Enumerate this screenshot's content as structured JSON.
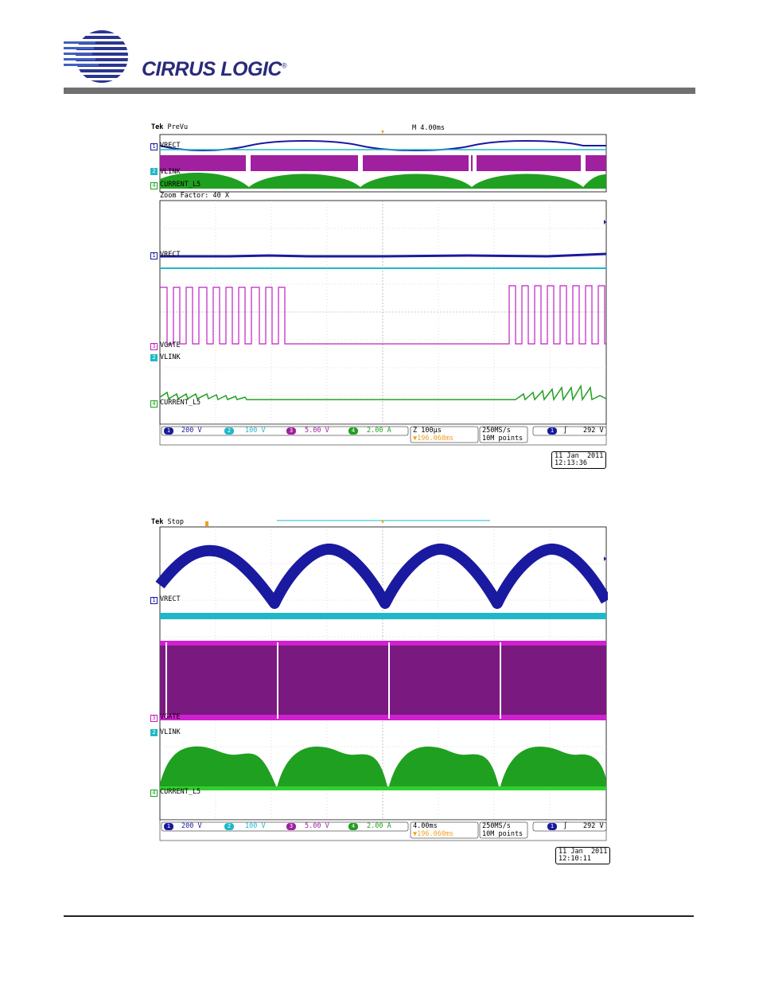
{
  "header": {
    "logo_text": "CIRRUS LOGIC",
    "logo_mark": "®"
  },
  "colors": {
    "ch1": "#1a1aa0",
    "ch2": "#20b8c8",
    "ch3": "#c020c0",
    "ch4": "#20a020",
    "trigger": "#f0a020"
  },
  "scope1": {
    "brand": "Tek",
    "state": "PreVu",
    "timebase_top": "M 4.00ms",
    "zoom_label": "Zoom Factor: 40 X",
    "channels": {
      "ch1": {
        "num": "1",
        "name": "VRECT",
        "scale": "200 V"
      },
      "ch2": {
        "num": "2",
        "name": "VLINK",
        "scale": "100 V"
      },
      "ch3": {
        "num": "3",
        "name": "VGATE",
        "scale": "5.00 V"
      },
      "ch4": {
        "num": "4",
        "name": "CURRENT_L5",
        "scale": "2.00 A"
      }
    },
    "bw_mark": "ᴮᵂ",
    "horiz": "Z 100µs",
    "trig_pos": "▼196.060ms",
    "rate": "250MS/s",
    "points": "10M points",
    "trig_ch": "1",
    "trig_slope": "∫",
    "trig_level": "292 V",
    "date": "11 Jan  2011",
    "time": "12:13:36"
  },
  "scope2": {
    "brand": "Tek",
    "state": "Stop",
    "channels": {
      "ch1": {
        "num": "1",
        "name": "VRECT",
        "scale": "200 V"
      },
      "ch2": {
        "num": "2",
        "name": "VLINK",
        "scale": "100 V"
      },
      "ch3": {
        "num": "3",
        "name": "VGATE",
        "scale": "5.00 V"
      },
      "ch4": {
        "num": "4",
        "name": "CURRENT_L5",
        "scale": "2.00 A"
      }
    },
    "horiz": "4.00ms",
    "trig_pos": "▼196.060ms",
    "rate": "250MS/s",
    "points": "10M points",
    "trig_ch": "1",
    "trig_slope": "∫",
    "trig_level": "292 V",
    "date": "11 Jan  2011",
    "time": "12:10:11"
  }
}
